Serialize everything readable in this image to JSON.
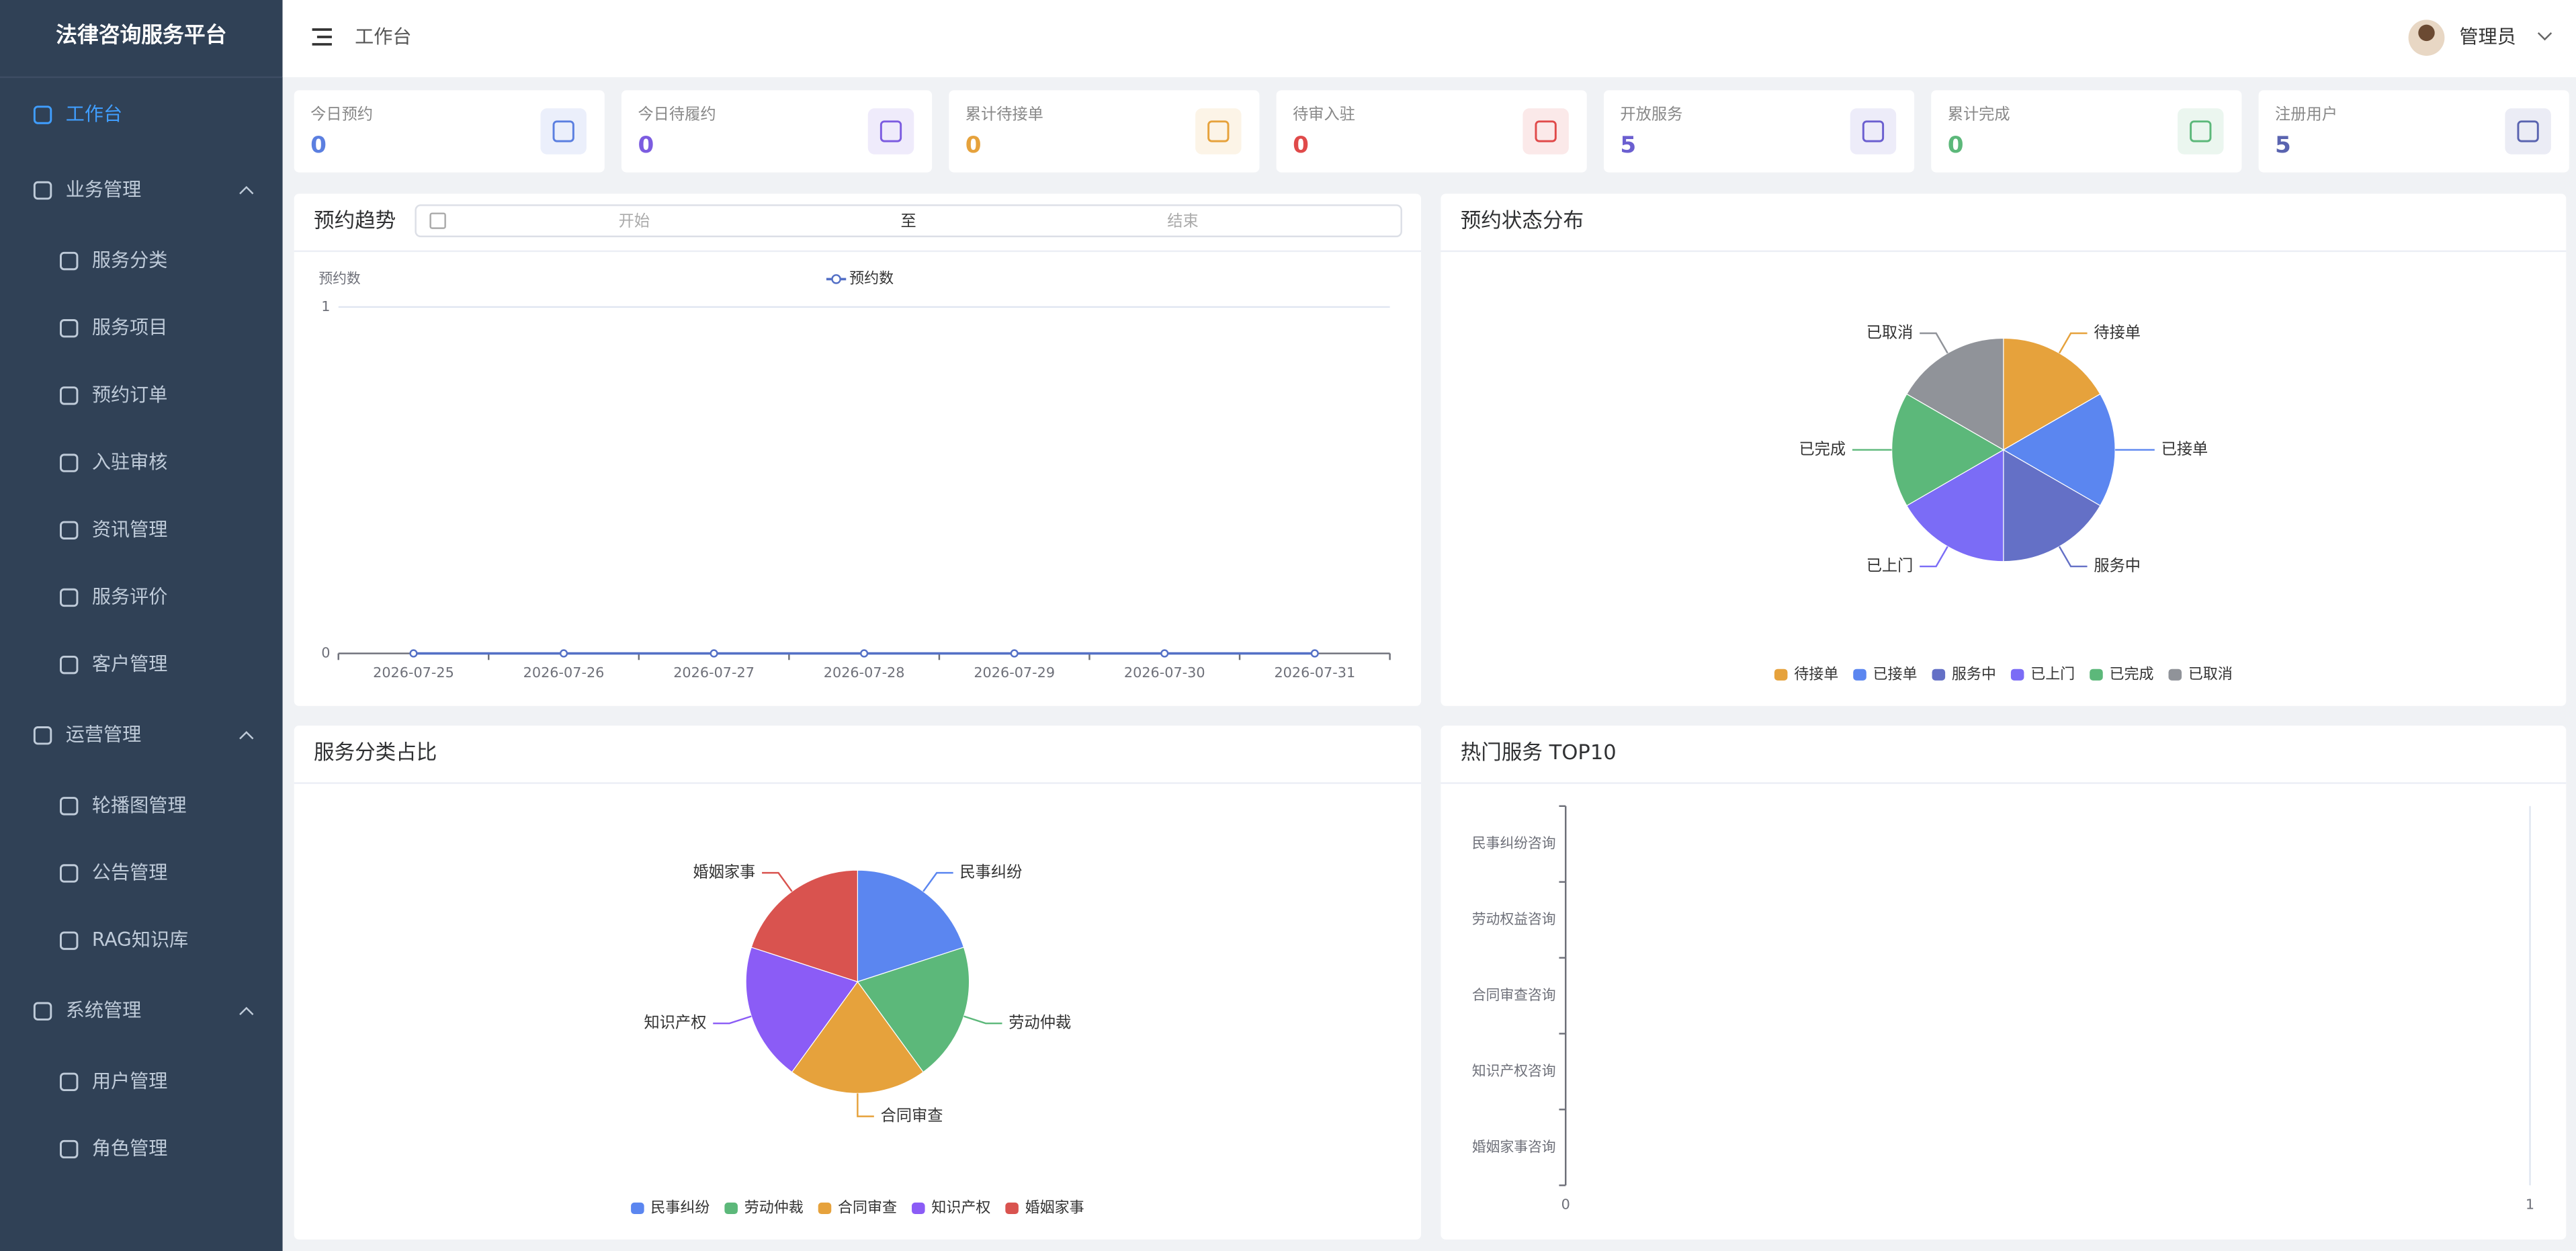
{
  "sidebar": {
    "title": "法律咨询服务平台",
    "menu": [
      {
        "label": "工作台"
      },
      {
        "label": "业务管理",
        "children": [
          "服务分类",
          "服务项目",
          "预约订单",
          "入驻审核",
          "资讯管理",
          "服务评价",
          "客户管理"
        ]
      },
      {
        "label": "运营管理",
        "children": [
          "轮播图管理",
          "公告管理",
          "RAG知识库"
        ]
      },
      {
        "label": "系统管理",
        "children": [
          "用户管理",
          "角色管理"
        ]
      }
    ]
  },
  "header": {
    "breadcrumb": "工作台",
    "user": "管理员"
  },
  "stats": [
    {
      "label": "今日预约",
      "value": 0,
      "color": "#5b7fe0"
    },
    {
      "label": "今日待履约",
      "value": 0,
      "color": "#7c5ce0"
    },
    {
      "label": "累计待接单",
      "value": 0,
      "color": "#e6a23c"
    },
    {
      "label": "待审入驻",
      "value": 0,
      "color": "#e04a4a"
    },
    {
      "label": "开放服务",
      "value": 5,
      "color": "#6b5fd0"
    },
    {
      "label": "累计完成",
      "value": 0,
      "color": "#5cb87a"
    },
    {
      "label": "注册用户",
      "value": 5,
      "color": "#5a64b0"
    }
  ],
  "chart_data": [
    {
      "type": "line",
      "title": "预约趋势",
      "date_range": {
        "start": "开始",
        "separator": "至",
        "end": "结束"
      },
      "y_label": "预约数",
      "x": [
        "2026-07-25",
        "2026-07-26",
        "2026-07-27",
        "2026-07-28",
        "2026-07-29",
        "2026-07-30",
        "2026-07-31"
      ],
      "series": [
        {
          "name": "预约数",
          "color": "#5470c6",
          "values": [
            0,
            0,
            0,
            0,
            0,
            0,
            0
          ]
        }
      ],
      "ylim": [
        0,
        1
      ],
      "yticks": [
        0,
        1
      ],
      "grid": true
    },
    {
      "type": "pie",
      "title": "预约状态分布",
      "categories": [
        "待接单",
        "已接单",
        "服务中",
        "已上门",
        "已完成",
        "已取消"
      ],
      "values": [
        1,
        1,
        1,
        1,
        1,
        1
      ],
      "colors": [
        "#e6a23c",
        "#5b86f0",
        "#6470c6",
        "#7b6cf6",
        "#5cb87a",
        "#909399"
      ],
      "legend": "bottom"
    },
    {
      "type": "pie",
      "title": "服务分类占比",
      "categories": [
        "民事纠纷",
        "劳动仲裁",
        "合同审查",
        "知识产权",
        "婚姻家事"
      ],
      "values": [
        1,
        1,
        1,
        1,
        1
      ],
      "colors": [
        "#5b86f0",
        "#5cb87a",
        "#e6a23c",
        "#8b5cf6",
        "#d9534f"
      ],
      "legend": "bottom"
    },
    {
      "type": "bar",
      "orientation": "horizontal",
      "title": "热门服务 TOP10",
      "categories": [
        "民事纠纷咨询",
        "劳动权益咨询",
        "合同审查咨询",
        "知识产权咨询",
        "婚姻家事咨询"
      ],
      "values": [
        0,
        0,
        0,
        0,
        0
      ],
      "color": "#5470c6",
      "xlim": [
        0,
        1
      ],
      "xticks": [
        0,
        1
      ]
    }
  ]
}
